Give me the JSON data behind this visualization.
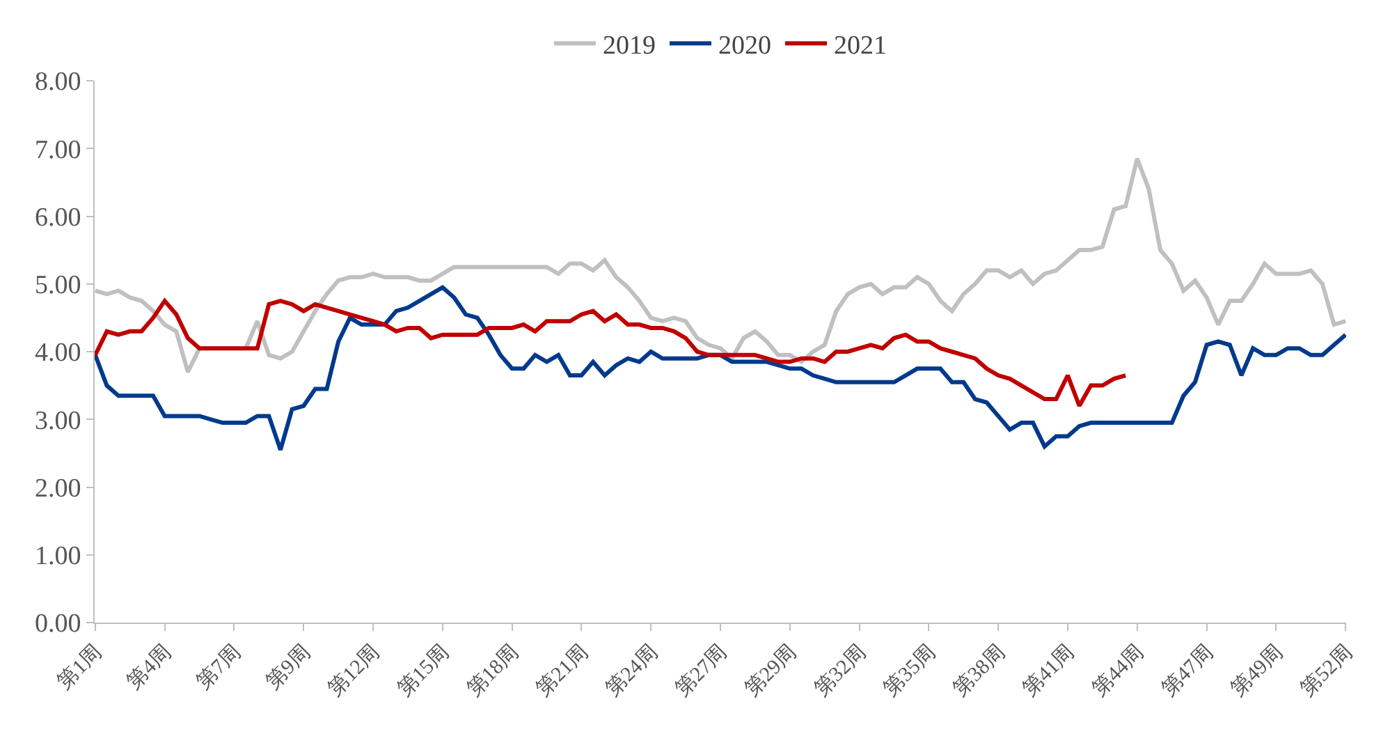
{
  "chart_data": {
    "type": "line",
    "categories": [
      "第1周",
      null,
      null,
      null,
      null,
      null,
      "第4周",
      null,
      null,
      null,
      null,
      null,
      "第7周",
      null,
      null,
      null,
      null,
      null,
      "第9周",
      null,
      null,
      null,
      null,
      null,
      "第12周",
      null,
      null,
      null,
      null,
      null,
      "第15周",
      null,
      null,
      null,
      null,
      null,
      "第18周",
      null,
      null,
      null,
      null,
      null,
      "第21周",
      null,
      null,
      null,
      null,
      null,
      "第24周",
      null,
      null,
      null,
      null,
      null,
      "第27周",
      null,
      null,
      null,
      null,
      null,
      "第29周",
      null,
      null,
      null,
      null,
      null,
      "第32周",
      null,
      null,
      null,
      null,
      null,
      "第35周",
      null,
      null,
      null,
      null,
      null,
      "第38周",
      null,
      null,
      null,
      null,
      null,
      "第41周",
      null,
      null,
      null,
      null,
      null,
      "第44周",
      null,
      null,
      null,
      null,
      null,
      "第47周",
      null,
      null,
      null,
      null,
      null,
      "第49周",
      null,
      null,
      null,
      null,
      null,
      "第52周"
    ],
    "series": [
      {
        "name": "2019",
        "color": "#c0c0c0",
        "values": [
          4.9,
          4.85,
          4.9,
          4.8,
          4.75,
          4.6,
          4.4,
          4.3,
          3.7,
          4.05,
          4.05,
          4.05,
          4.05,
          4.05,
          4.45,
          3.95,
          3.9,
          4.0,
          4.3,
          4.6,
          4.85,
          5.05,
          5.1,
          5.1,
          5.15,
          5.1,
          5.1,
          5.1,
          5.05,
          5.05,
          5.15,
          5.25,
          5.25,
          5.25,
          5.25,
          5.25,
          5.25,
          5.25,
          5.25,
          5.25,
          5.15,
          5.3,
          5.3,
          5.2,
          5.35,
          5.1,
          4.95,
          4.75,
          4.5,
          4.45,
          4.5,
          4.45,
          4.2,
          4.1,
          4.05,
          3.9,
          4.2,
          4.3,
          4.15,
          3.95,
          3.95,
          3.85,
          4.0,
          4.1,
          4.6,
          4.85,
          4.95,
          5.0,
          4.85,
          4.95,
          4.95,
          5.1,
          5.0,
          4.75,
          4.6,
          4.85,
          5.0,
          5.2,
          5.2,
          5.1,
          5.2,
          5.0,
          5.15,
          5.2,
          5.35,
          5.5,
          5.5,
          5.55,
          6.1,
          6.15,
          6.85,
          6.4,
          5.5,
          5.3,
          4.9,
          5.05,
          4.8,
          4.4,
          4.75,
          4.75,
          5.0,
          5.3,
          5.15,
          5.15,
          5.15,
          5.2,
          5.0,
          4.4,
          4.45
        ]
      },
      {
        "name": "2020",
        "color": "#003a8c",
        "values": [
          3.95,
          3.5,
          3.35,
          3.35,
          3.35,
          3.35,
          3.05,
          3.05,
          3.05,
          3.05,
          3.0,
          2.95,
          2.95,
          2.95,
          3.05,
          3.05,
          2.55,
          3.15,
          3.2,
          3.45,
          3.45,
          4.15,
          4.5,
          4.4,
          4.4,
          4.4,
          4.6,
          4.65,
          4.75,
          4.85,
          4.95,
          4.8,
          4.55,
          4.5,
          4.25,
          3.95,
          3.75,
          3.75,
          3.95,
          3.85,
          3.95,
          3.65,
          3.65,
          3.85,
          3.65,
          3.8,
          3.9,
          3.85,
          4.0,
          3.9,
          3.9,
          3.9,
          3.9,
          3.95,
          3.95,
          3.85,
          3.85,
          3.85,
          3.85,
          3.8,
          3.75,
          3.75,
          3.65,
          3.6,
          3.55,
          3.55,
          3.55,
          3.55,
          3.55,
          3.55,
          3.65,
          3.75,
          3.75,
          3.75,
          3.55,
          3.55,
          3.3,
          3.25,
          3.05,
          2.85,
          2.95,
          2.95,
          2.6,
          2.75,
          2.75,
          2.9,
          2.95,
          2.95,
          2.95,
          2.95,
          2.95,
          2.95,
          2.95,
          2.95,
          3.35,
          3.55,
          4.1,
          4.15,
          4.1,
          3.65,
          4.05,
          3.95,
          3.95,
          4.05,
          4.05,
          3.95,
          3.95,
          4.1,
          4.25
        ]
      },
      {
        "name": "2021",
        "color": "#c00000",
        "values": [
          3.95,
          4.3,
          4.25,
          4.3,
          4.3,
          4.5,
          4.75,
          4.55,
          4.2,
          4.05,
          4.05,
          4.05,
          4.05,
          4.05,
          4.05,
          4.7,
          4.75,
          4.7,
          4.6,
          4.7,
          4.65,
          4.6,
          4.55,
          4.5,
          4.45,
          4.4,
          4.3,
          4.35,
          4.35,
          4.2,
          4.25,
          4.25,
          4.25,
          4.25,
          4.35,
          4.35,
          4.35,
          4.4,
          4.3,
          4.45,
          4.45,
          4.45,
          4.55,
          4.6,
          4.45,
          4.55,
          4.4,
          4.4,
          4.35,
          4.35,
          4.3,
          4.2,
          4.0,
          3.95,
          3.95,
          3.95,
          3.95,
          3.95,
          3.9,
          3.85,
          3.85,
          3.9,
          3.9,
          3.85,
          4.0,
          4.0,
          4.05,
          4.1,
          4.05,
          4.2,
          4.25,
          4.15,
          4.15,
          4.05,
          4.0,
          3.95,
          3.9,
          3.75,
          3.65,
          3.6,
          3.5,
          3.4,
          3.3,
          3.3,
          3.65,
          3.2,
          3.5,
          3.5,
          3.6,
          3.65,
          null,
          null,
          null,
          null,
          null,
          null,
          null,
          null,
          null,
          null,
          null,
          null,
          null,
          null,
          null,
          null,
          null,
          null,
          null
        ]
      }
    ],
    "ylim": [
      0,
      8
    ],
    "yticks": [
      {
        "value": 0,
        "label": "0.00"
      },
      {
        "value": 1,
        "label": "1.00"
      },
      {
        "value": 2,
        "label": "2.00"
      },
      {
        "value": 3,
        "label": "3.00"
      },
      {
        "value": 4,
        "label": "4.00"
      },
      {
        "value": 5,
        "label": "5.00"
      },
      {
        "value": 6,
        "label": "6.00"
      },
      {
        "value": 7,
        "label": "7.00"
      },
      {
        "value": 8,
        "label": "8.00"
      }
    ],
    "grid": false,
    "legend": "top",
    "marker": "none",
    "line_style": "solid"
  }
}
